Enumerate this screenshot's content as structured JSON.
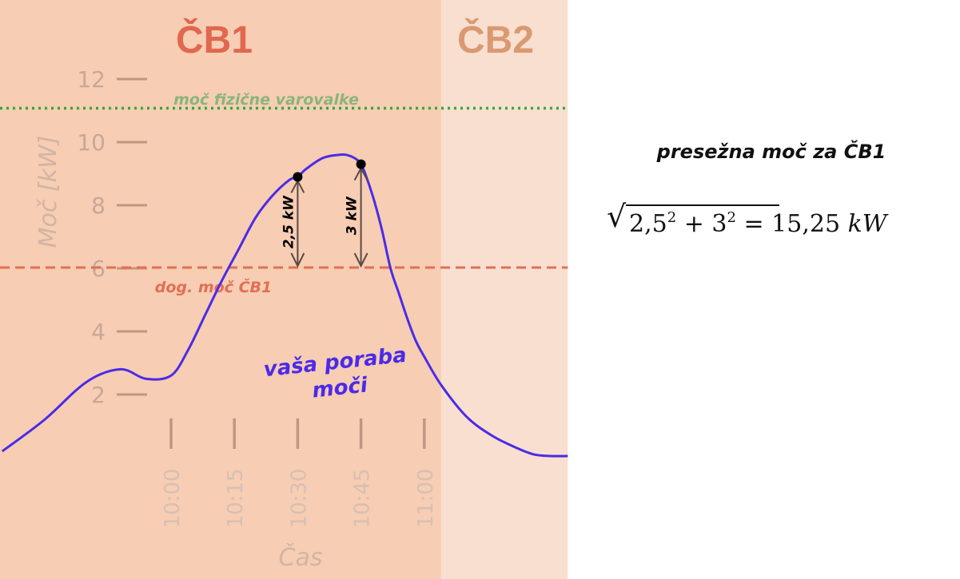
{
  "chart_data": {
    "type": "line",
    "xlabel": "Čas",
    "ylabel": "Moč [kW]",
    "ylim": [
      0,
      12
    ],
    "yticks": [
      2,
      4,
      6,
      8,
      10,
      12
    ],
    "xticks": [
      "10:00",
      "10:15",
      "10:30",
      "10:45",
      "11:00"
    ],
    "xlim_minutes": [
      -40,
      94
    ],
    "regions": [
      {
        "label": "ČB1",
        "from_minutes": -40,
        "to_minutes": 64,
        "color": "#f7cdb3"
      },
      {
        "label": "ČB2",
        "from_minutes": 64,
        "to_minutes": 94,
        "color": "#f9dfcf"
      }
    ],
    "reference_lines": [
      {
        "name": "moč fizične varovalke",
        "value": 11,
        "color": "#2bab3d"
      },
      {
        "name": "dog. moč ČB1",
        "value": 6,
        "color": "#e07055"
      }
    ],
    "series": [
      {
        "name": "vaša poraba moči",
        "color": "#4a2be8",
        "x": [
          -40,
          -30,
          -20,
          -12,
          -6,
          0,
          4,
          8,
          12,
          16,
          20,
          24,
          28,
          30,
          32,
          36,
          40,
          42,
          44,
          45,
          46,
          48,
          50,
          52,
          54,
          56,
          58,
          60,
          64,
          70,
          76,
          82,
          86,
          90,
          94
        ],
        "y": [
          0.2,
          1.2,
          2.4,
          2.8,
          2.5,
          2.6,
          3.4,
          4.5,
          5.6,
          6.6,
          7.6,
          8.3,
          8.8,
          8.9,
          9.15,
          9.5,
          9.6,
          9.58,
          9.45,
          9.3,
          9.0,
          8.2,
          7.2,
          6.0,
          5.2,
          4.4,
          3.7,
          3.2,
          2.3,
          1.3,
          0.7,
          0.3,
          0.1,
          0.05,
          0.05
        ]
      }
    ],
    "markers": [
      {
        "x": 30,
        "y": 8.9,
        "label": "2,5 kW"
      },
      {
        "x": 45,
        "y": 9.3,
        "label": "3 kW"
      }
    ],
    "annotations": [
      "moč fizične varovalke",
      "dog. moč ČB1",
      "vaša poraba",
      "moči"
    ]
  },
  "formula": {
    "title": "presežna moč za ČB1",
    "a": "2,5",
    "b": "3",
    "exp": "2",
    "plus": " + ",
    "equals": " = ",
    "result": "15,25",
    "unit": "kW"
  }
}
